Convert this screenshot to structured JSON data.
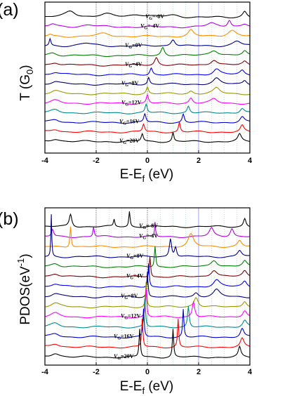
{
  "chart_data": [
    {
      "type": "line",
      "panel_label": "(a)",
      "ylabel": "T (G",
      "ylabel_sub": "0",
      "ylabel_close": ")",
      "xlabel": "E-E",
      "xlabel_sub": "f",
      "xlabel_unit": " (eV)",
      "xlim": [
        -4,
        4
      ],
      "xticks": [
        "-4",
        "-2",
        "0",
        "2",
        "4"
      ],
      "ref_lines_x": [
        -2,
        0,
        2
      ],
      "series": [
        {
          "label": "V",
          "sub": "G",
          "value": "=-8V",
          "color": "#000000"
        },
        {
          "label": "V",
          "sub": "G",
          "value": "=-4V",
          "color": "#b400e6"
        },
        {
          "label": "",
          "sub": "",
          "value": "",
          "color": "#ff8c00"
        },
        {
          "label": "V",
          "sub": "G",
          "value": "=0V",
          "color": "#00008b"
        },
        {
          "label": "",
          "sub": "",
          "value": "",
          "color": "#008000"
        },
        {
          "label": "V",
          "sub": "G",
          "value": "=4V",
          "color": "#800000"
        },
        {
          "label": "",
          "sub": "",
          "value": "",
          "color": "#0000ff"
        },
        {
          "label": "V",
          "sub": "G",
          "value": "=8V",
          "color": "#000080"
        },
        {
          "label": "",
          "sub": "",
          "value": "",
          "color": "#999900"
        },
        {
          "label": "V",
          "sub": "G",
          "value": "=12V",
          "color": "#ff00ff"
        },
        {
          "label": "",
          "sub": "",
          "value": "",
          "color": "#008b8b"
        },
        {
          "label": "V",
          "sub": "G",
          "value": "=16V",
          "color": "#0000cd"
        },
        {
          "label": "",
          "sub": "",
          "value": "",
          "color": "#ff0000"
        },
        {
          "label": "V",
          "sub": "G",
          "value": "=20V",
          "color": "#000000"
        }
      ]
    },
    {
      "type": "line",
      "panel_label": "(b)",
      "ylabel": "PDOS(eV",
      "ylabel_sup": "-1",
      "ylabel_close": ")",
      "xlabel": "E-E",
      "xlabel_sub": "f",
      "xlabel_unit": " (eV)",
      "xlim": [
        -4,
        4
      ],
      "xticks": [
        "-4",
        "-2",
        "0",
        "2",
        "4"
      ],
      "ref_lines_x": [
        -2,
        0,
        2
      ],
      "series": [
        {
          "label": "V",
          "sub": "G",
          "value": "=-8V",
          "color": "#000000"
        },
        {
          "label": "V",
          "sub": "G",
          "value": "=-4V",
          "color": "#b400e6"
        },
        {
          "label": "",
          "sub": "",
          "value": "",
          "color": "#ff8c00"
        },
        {
          "label": "V",
          "sub": "G",
          "value": "=0V",
          "color": "#00008b"
        },
        {
          "label": "",
          "sub": "",
          "value": "",
          "color": "#008000"
        },
        {
          "label": "V",
          "sub": "G",
          "value": "=4V",
          "color": "#800000"
        },
        {
          "label": "",
          "sub": "",
          "value": "",
          "color": "#0000ff"
        },
        {
          "label": "V",
          "sub": "G",
          "value": "=8V",
          "color": "#000080"
        },
        {
          "label": "",
          "sub": "",
          "value": "",
          "color": "#999900"
        },
        {
          "label": "V",
          "sub": "G",
          "value": "=12V",
          "color": "#ff00ff"
        },
        {
          "label": "",
          "sub": "",
          "value": "",
          "color": "#008b8b"
        },
        {
          "label": "V",
          "sub": "G",
          "value": "=16V",
          "color": "#0000cd"
        },
        {
          "label": "",
          "sub": "",
          "value": "",
          "color": "#ff0000"
        },
        {
          "label": "V",
          "sub": "G",
          "value": "=20V",
          "color": "#000000"
        }
      ]
    }
  ]
}
